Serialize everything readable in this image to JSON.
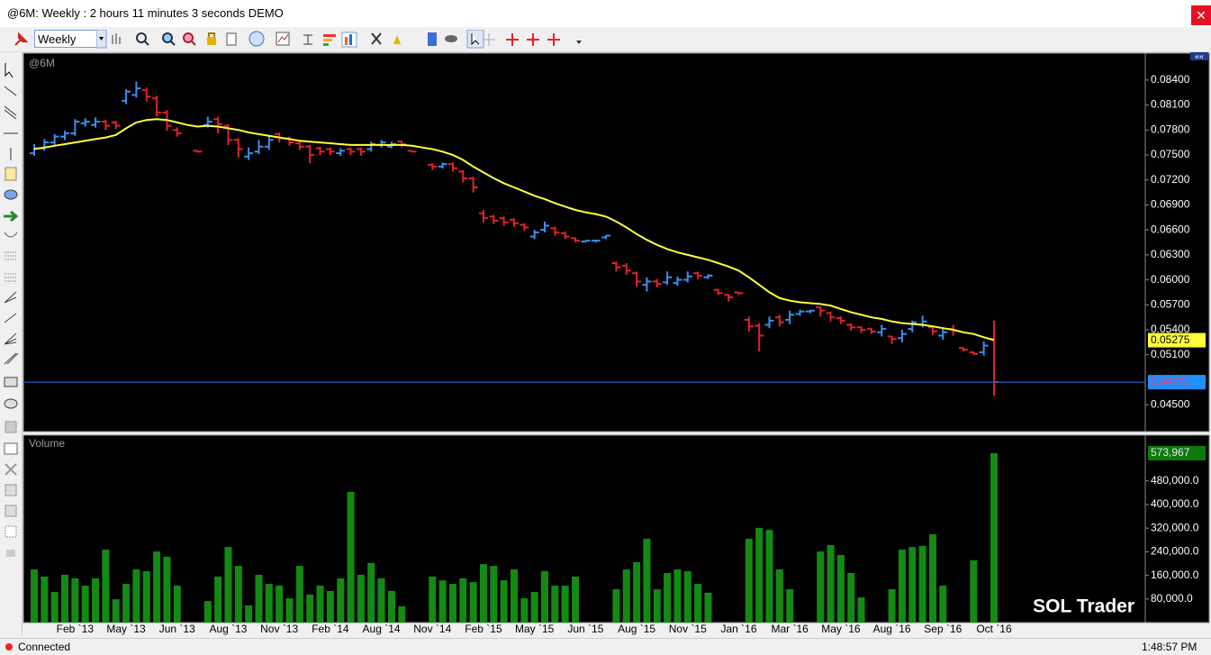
{
  "window": {
    "title": "@6M: Weekly : 2 hours 11 minutes 3 seconds DEMO",
    "interval": "Weekly"
  },
  "status": {
    "connection": "Connected",
    "time": "1:48:57 PM"
  },
  "watermark": "SOL Trader",
  "chart_data": [
    {
      "type": "ohlc",
      "title": "@6M",
      "ylim": [
        0.0421,
        0.0869
      ],
      "yticks": [
        {
          "value": 0.084,
          "label": "0.08400"
        },
        {
          "value": 0.081,
          "label": "0.08100"
        },
        {
          "value": 0.078,
          "label": "0.07800"
        },
        {
          "value": 0.075,
          "label": "0.07500"
        },
        {
          "value": 0.072,
          "label": "0.07200"
        },
        {
          "value": 0.069,
          "label": "0.06900"
        },
        {
          "value": 0.066,
          "label": "0.06600"
        },
        {
          "value": 0.063,
          "label": "0.06300"
        },
        {
          "value": 0.06,
          "label": "0.06000"
        },
        {
          "value": 0.057,
          "label": "0.05700"
        },
        {
          "value": 0.054,
          "label": "0.05400"
        },
        {
          "value": 0.051,
          "label": "0.05100"
        },
        {
          "value": 0.045,
          "label": "0.04500"
        }
      ],
      "up_color": "#3a8ef2",
      "down_color": "#e3202c",
      "last_price_line_color": "#2f6cf5",
      "open": [
        0.0752,
        0.0758,
        0.0765,
        0.0772,
        0.0776,
        0.0788,
        0.0786,
        0.079,
        0.0789,
        0.0815,
        0.0822,
        0.0828,
        0.0818,
        0.0801,
        0.078,
        null,
        0.0755,
        0.0786,
        0.0793,
        0.0785,
        0.0768,
        0.0748,
        0.0754,
        0.076,
        0.0775,
        0.077,
        0.0764,
        0.076,
        0.0758,
        0.0757,
        0.0752,
        0.0757,
        0.0757,
        0.0757,
        0.0762,
        0.076,
        0.0766,
        0.0755,
        null,
        0.0738,
        0.0736,
        0.0739,
        0.073,
        0.0722,
        0.068,
        0.0676,
        0.0674,
        0.0672,
        0.0666,
        0.0652,
        0.066,
        0.0662,
        0.0656,
        0.065,
        0.0646,
        0.0647,
        0.0651,
        0.062,
        0.0617,
        0.0608,
        0.0594,
        0.0598,
        0.0597,
        0.0596,
        0.06,
        0.0608,
        0.0603,
        0.0588,
        0.0582,
        0.0585,
        0.0552,
        0.0545,
        0.0546,
        0.0555,
        0.0552,
        0.0559,
        0.0562,
        0.0567,
        0.056,
        0.0554,
        0.0546,
        0.0543,
        0.0541,
        0.0537,
        0.0532,
        0.053,
        0.0541,
        0.0546,
        0.0543,
        0.0533,
        0.0541,
        0.0518,
        0.0513,
        0.0513,
        0.0529
      ],
      "high": [
        0.0763,
        0.0769,
        0.0775,
        0.0779,
        0.0793,
        0.0794,
        0.0795,
        0.0792,
        0.0791,
        0.0829,
        0.0838,
        0.0831,
        0.0821,
        0.0804,
        0.0783,
        null,
        0.0755,
        0.0796,
        0.0796,
        0.0787,
        0.077,
        0.0759,
        0.0768,
        0.0773,
        0.0777,
        0.0772,
        0.0767,
        0.0762,
        0.076,
        0.0759,
        0.0758,
        0.0759,
        0.0759,
        0.0766,
        0.0768,
        0.0766,
        0.0767,
        0.0755,
        null,
        0.074,
        0.0741,
        0.0741,
        0.0732,
        0.0724,
        0.0684,
        0.0678,
        0.0676,
        0.0674,
        0.0668,
        0.066,
        0.067,
        0.0664,
        0.0658,
        0.0651,
        0.0647,
        0.0648,
        0.0654,
        0.0622,
        0.062,
        0.061,
        0.0603,
        0.0601,
        0.061,
        0.0604,
        0.061,
        0.061,
        0.0607,
        0.0589,
        0.0583,
        0.0585,
        0.0556,
        0.0548,
        0.0556,
        0.0558,
        0.0563,
        0.0564,
        0.0564,
        0.0568,
        0.0562,
        0.0556,
        0.0548,
        0.0544,
        0.0542,
        0.0546,
        0.0533,
        0.054,
        0.0551,
        0.0557,
        0.0545,
        0.0542,
        0.0546,
        0.0519,
        0.0514,
        0.0526,
        0.0551
      ],
      "low": [
        0.075,
        0.0756,
        0.0763,
        0.0769,
        0.0774,
        0.0785,
        0.0784,
        0.0781,
        0.0782,
        0.0812,
        0.082,
        0.0815,
        0.0797,
        0.078,
        0.0773,
        null,
        0.0754,
        0.0784,
        0.0777,
        0.0763,
        0.0748,
        0.0745,
        0.0752,
        0.0757,
        0.0766,
        0.0762,
        0.0757,
        0.0741,
        0.0751,
        0.0751,
        0.075,
        0.0751,
        0.075,
        0.0755,
        0.076,
        0.0759,
        0.076,
        0.0754,
        null,
        0.0733,
        0.0735,
        0.0731,
        0.0718,
        0.0706,
        0.067,
        0.0668,
        0.0666,
        0.0665,
        0.066,
        0.065,
        0.0658,
        0.0654,
        0.065,
        0.0646,
        0.0646,
        0.0646,
        0.065,
        0.0611,
        0.0607,
        0.0593,
        0.0587,
        0.0592,
        0.0595,
        0.0594,
        0.0598,
        0.0602,
        0.0602,
        0.0583,
        0.0575,
        0.0583,
        0.0539,
        0.0515,
        0.0543,
        0.0545,
        0.0548,
        0.0558,
        0.0561,
        0.0557,
        0.0551,
        0.0548,
        0.054,
        0.0537,
        0.0536,
        0.0533,
        0.0524,
        0.0526,
        0.0538,
        0.0544,
        0.0535,
        0.0529,
        0.0534,
        0.0515,
        0.0511,
        0.051,
        0.0462
      ],
      "close": [
        0.0758,
        0.0765,
        0.0772,
        0.0776,
        0.079,
        0.079,
        0.079,
        0.0785,
        0.0785,
        0.0826,
        0.083,
        0.082,
        0.0801,
        0.0785,
        0.0776,
        null,
        0.0754,
        0.079,
        0.0787,
        0.0768,
        0.0757,
        0.0752,
        0.076,
        0.0768,
        0.077,
        0.0765,
        0.076,
        0.075,
        0.0754,
        0.0754,
        0.0755,
        0.0754,
        0.0754,
        0.0763,
        0.0765,
        0.0763,
        0.0763,
        0.0754,
        null,
        0.0736,
        0.0739,
        0.0734,
        0.0722,
        0.0711,
        0.0674,
        0.0671,
        0.0669,
        0.0668,
        0.0663,
        0.0657,
        0.0665,
        0.0657,
        0.0652,
        0.0647,
        0.0647,
        0.0647,
        0.0653,
        0.0615,
        0.0611,
        0.0598,
        0.0598,
        0.0595,
        0.0603,
        0.06,
        0.0604,
        0.0605,
        0.0605,
        0.0584,
        0.0579,
        0.0584,
        0.0544,
        0.0533,
        0.0551,
        0.0549,
        0.0558,
        0.0562,
        0.0563,
        0.0563,
        0.0555,
        0.0551,
        0.0543,
        0.054,
        0.0538,
        0.0541,
        0.0529,
        0.0535,
        0.0549,
        0.055,
        0.0538,
        0.0537,
        0.0539,
        0.0516,
        0.0511,
        0.0521,
        0.04771
      ],
      "moving_average": {
        "color": "#ffff3a",
        "values": [
          0.0757,
          0.0759,
          0.0761,
          0.0763,
          0.0765,
          0.0767,
          0.0769,
          0.0771,
          0.0774,
          0.0782,
          0.0789,
          0.0792,
          0.0793,
          0.0792,
          0.0789,
          0.0786,
          0.0784,
          0.0785,
          0.0784,
          0.0782,
          0.078,
          0.0777,
          0.0775,
          0.0773,
          0.0771,
          0.0769,
          0.0767,
          0.0766,
          0.0765,
          0.0764,
          0.0763,
          0.0762,
          0.0762,
          0.0762,
          0.0762,
          0.0762,
          0.0762,
          0.0761,
          0.0759,
          0.0757,
          0.0754,
          0.075,
          0.0744,
          0.0736,
          0.0729,
          0.0722,
          0.0716,
          0.0711,
          0.0706,
          0.0701,
          0.0697,
          0.0692,
          0.0688,
          0.0684,
          0.0681,
          0.0679,
          0.0676,
          0.067,
          0.0663,
          0.0655,
          0.0648,
          0.0642,
          0.0637,
          0.0633,
          0.063,
          0.0627,
          0.0624,
          0.062,
          0.0616,
          0.0611,
          0.0603,
          0.0594,
          0.0585,
          0.0578,
          0.0575,
          0.0573,
          0.0572,
          0.0571,
          0.0569,
          0.0565,
          0.0561,
          0.0558,
          0.0555,
          0.0553,
          0.055,
          0.0548,
          0.0547,
          0.0546,
          0.0544,
          0.0542,
          0.054,
          0.0537,
          0.0535,
          0.0531,
          0.05275
        ]
      }
    },
    {
      "type": "bar",
      "title": "Volume",
      "color": "#148a14",
      "ylim": [
        0,
        632000
      ],
      "yticks": [
        {
          "value": 80000,
          "label": "80,000.0"
        },
        {
          "value": 160000,
          "label": "160,000.0"
        },
        {
          "value": 240000,
          "label": "240,000.0"
        },
        {
          "value": 320000,
          "label": "320,000.0"
        },
        {
          "value": 400000,
          "label": "400,000.0"
        },
        {
          "value": 480000,
          "label": "480,000.0"
        }
      ],
      "last_value_label": "573,967",
      "categories": [
        null,
        null,
        null,
        null,
        "Feb `13",
        null,
        null,
        null,
        null,
        "May `13",
        null,
        null,
        null,
        null,
        "Jun `13",
        null,
        null,
        null,
        null,
        "Aug `13",
        null,
        null,
        null,
        null,
        "Nov `13",
        null,
        null,
        null,
        null,
        "Feb `14",
        null,
        null,
        null,
        null,
        "Aug `14",
        null,
        null,
        null,
        null,
        "Nov `14",
        null,
        null,
        null,
        null,
        "Feb `15",
        null,
        null,
        null,
        null,
        "May `15",
        null,
        null,
        null,
        null,
        "Jun `15",
        null,
        null,
        null,
        null,
        "Aug `15",
        null,
        null,
        null,
        null,
        "Nov `15",
        null,
        null,
        null,
        null,
        "Jan `16",
        null,
        null,
        null,
        null,
        "Mar `16",
        null,
        null,
        null,
        null,
        "May `16",
        null,
        null,
        null,
        null,
        "Aug `16",
        null,
        null,
        null,
        null,
        "Sep `16",
        null,
        null,
        null,
        null,
        "Oct `16"
      ],
      "values": [
        180000,
        156000,
        104000,
        162000,
        150000,
        125000,
        150000,
        247000,
        79000,
        131000,
        180000,
        174000,
        241000,
        223000,
        125000,
        null,
        null,
        73000,
        156000,
        256000,
        192000,
        58000,
        162000,
        131000,
        125000,
        82000,
        192000,
        95000,
        125000,
        107000,
        150000,
        443000,
        162000,
        202000,
        150000,
        107000,
        55000,
        null,
        null,
        156000,
        143000,
        131000,
        150000,
        137000,
        198000,
        192000,
        143000,
        180000,
        82000,
        104000,
        174000,
        125000,
        125000,
        156000,
        null,
        null,
        null,
        113000,
        180000,
        205000,
        284000,
        113000,
        168000,
        180000,
        174000,
        131000,
        101000,
        null,
        null,
        null,
        284000,
        321000,
        314000,
        180000,
        113000,
        null,
        null,
        241000,
        263000,
        229000,
        168000,
        85000,
        null,
        null,
        113000,
        247000,
        256000,
        260000,
        299000,
        125000,
        null,
        null,
        211000,
        null,
        573967
      ]
    }
  ]
}
